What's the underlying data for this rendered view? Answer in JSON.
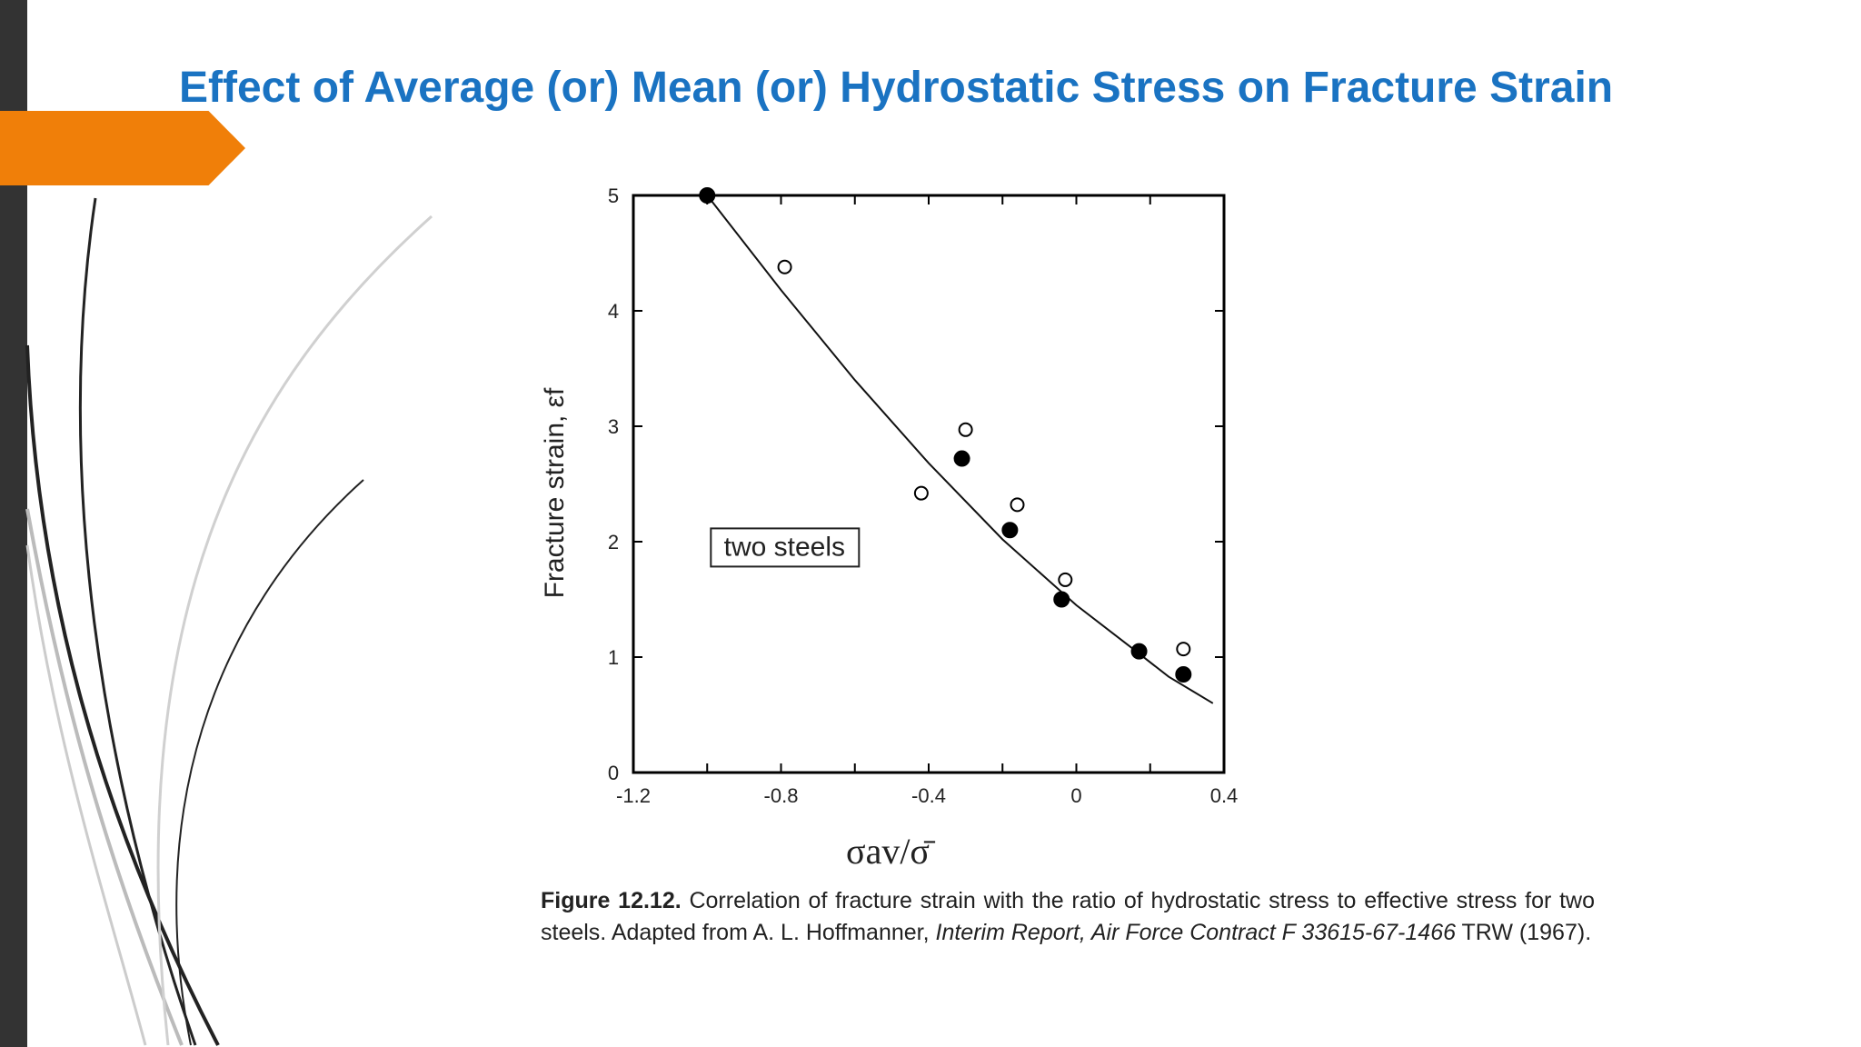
{
  "slide": {
    "title": "Effect of Average (or) Mean (or) Hydrostatic Stress on Fracture Strain",
    "colors": {
      "title": "#1a73c2",
      "accent_arrow": "#f07f09",
      "left_bar": "#333333"
    }
  },
  "chart_data": {
    "type": "scatter",
    "title": "",
    "xlabel": "σav/σ̄",
    "ylabel": "Fracture strain, εf",
    "xlim": [
      -1.2,
      0.4
    ],
    "ylim": [
      0,
      5
    ],
    "xticks": [
      -1.2,
      -0.8,
      -0.4,
      0,
      0.4
    ],
    "xtick_labels": [
      "-1.2",
      "-0.8",
      "-0.4",
      "0",
      "0.4"
    ],
    "yticks": [
      0,
      1,
      2,
      3,
      4,
      5
    ],
    "ytick_labels": [
      "0",
      "1",
      "2",
      "3",
      "4",
      "5"
    ],
    "grid": false,
    "annotation": "two steels",
    "series": [
      {
        "marker": "filled-circle",
        "points": [
          {
            "x": -1.0,
            "y": 5.0
          },
          {
            "x": -0.31,
            "y": 2.72
          },
          {
            "x": -0.18,
            "y": 2.1
          },
          {
            "x": -0.04,
            "y": 1.5
          },
          {
            "x": 0.17,
            "y": 1.05
          },
          {
            "x": 0.29,
            "y": 0.85
          }
        ]
      },
      {
        "marker": "open-circle",
        "points": [
          {
            "x": -0.79,
            "y": 4.38
          },
          {
            "x": -0.42,
            "y": 2.42
          },
          {
            "x": -0.3,
            "y": 2.97
          },
          {
            "x": -0.16,
            "y": 2.32
          },
          {
            "x": -0.03,
            "y": 1.67
          },
          {
            "x": 0.29,
            "y": 1.07
          }
        ]
      }
    ],
    "fit_curve": [
      {
        "x": -1.0,
        "y": 5.0
      },
      {
        "x": -0.8,
        "y": 4.18
      },
      {
        "x": -0.6,
        "y": 3.4
      },
      {
        "x": -0.4,
        "y": 2.68
      },
      {
        "x": -0.2,
        "y": 2.02
      },
      {
        "x": 0.0,
        "y": 1.45
      },
      {
        "x": 0.15,
        "y": 1.08
      },
      {
        "x": 0.25,
        "y": 0.83
      },
      {
        "x": 0.37,
        "y": 0.6
      }
    ]
  },
  "caption": {
    "label": "Figure 12.12.",
    "text1": " Correlation of fracture strain with the ratio of hydrostatic stress to effective stress for two steels. Adapted from A. L. Hoffmanner, ",
    "italic": "Interim Report, Air Force Contract F 33615-67-1466",
    "text2": " TRW (1967)."
  }
}
